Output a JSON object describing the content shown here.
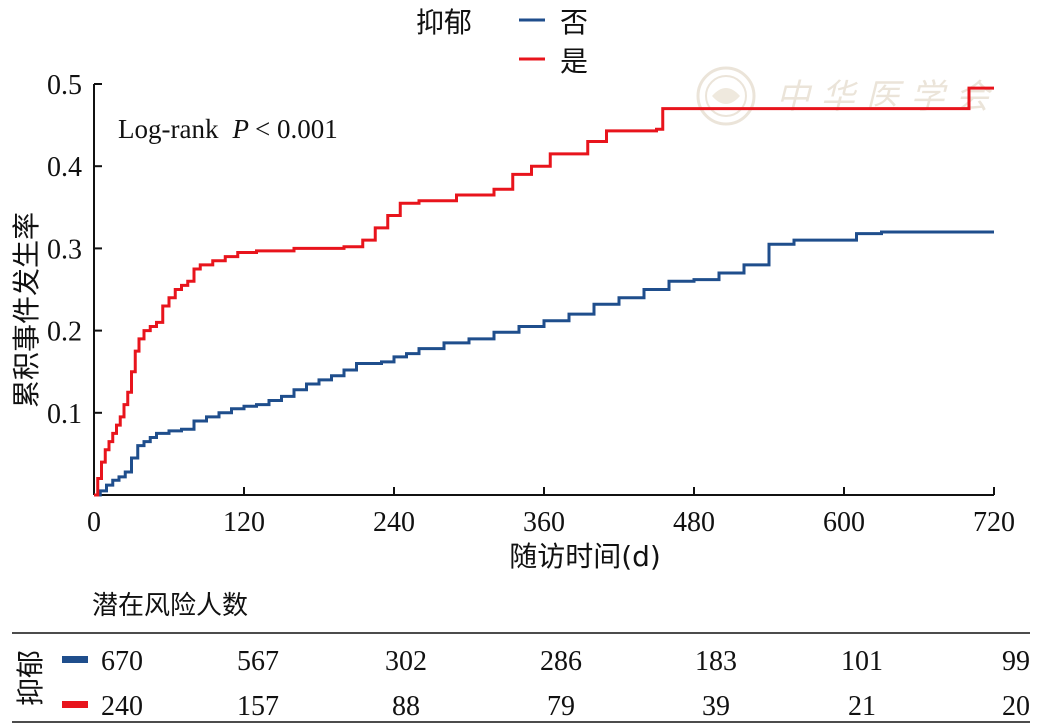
{
  "chart_data": {
    "type": "line",
    "subtype": "step",
    "annotation": "Log-rank",
    "annotation_p": "P",
    "annotation_value": "< 0.001",
    "xlabel": "随访时间(d)",
    "ylabel": "累积事件发生率",
    "xlim": [
      0,
      720
    ],
    "ylim": [
      0,
      0.5
    ],
    "xticks": [
      "0",
      "120",
      "240",
      "360",
      "480",
      "600",
      "720"
    ],
    "yticks": [
      "0.1",
      "0.2",
      "0.3",
      "0.4",
      "0.5"
    ],
    "grid": false,
    "legend": {
      "title": "抑郁",
      "position": "top-center"
    },
    "series": [
      {
        "name": "否",
        "color": "#1f4e8c",
        "points": [
          [
            0,
            0
          ],
          [
            5,
            0.005
          ],
          [
            10,
            0.012
          ],
          [
            15,
            0.018
          ],
          [
            20,
            0.022
          ],
          [
            25,
            0.028
          ],
          [
            30,
            0.045
          ],
          [
            35,
            0.06
          ],
          [
            40,
            0.065
          ],
          [
            45,
            0.07
          ],
          [
            50,
            0.075
          ],
          [
            60,
            0.078
          ],
          [
            70,
            0.08
          ],
          [
            80,
            0.09
          ],
          [
            90,
            0.095
          ],
          [
            100,
            0.1
          ],
          [
            110,
            0.105
          ],
          [
            120,
            0.108
          ],
          [
            130,
            0.11
          ],
          [
            140,
            0.115
          ],
          [
            150,
            0.12
          ],
          [
            160,
            0.128
          ],
          [
            170,
            0.135
          ],
          [
            180,
            0.14
          ],
          [
            190,
            0.145
          ],
          [
            200,
            0.152
          ],
          [
            210,
            0.16
          ],
          [
            230,
            0.162
          ],
          [
            240,
            0.168
          ],
          [
            250,
            0.172
          ],
          [
            260,
            0.178
          ],
          [
            280,
            0.185
          ],
          [
            300,
            0.19
          ],
          [
            320,
            0.198
          ],
          [
            340,
            0.205
          ],
          [
            360,
            0.212
          ],
          [
            380,
            0.22
          ],
          [
            400,
            0.232
          ],
          [
            420,
            0.24
          ],
          [
            440,
            0.25
          ],
          [
            460,
            0.26
          ],
          [
            480,
            0.262
          ],
          [
            500,
            0.27
          ],
          [
            520,
            0.28
          ],
          [
            540,
            0.305
          ],
          [
            560,
            0.31
          ],
          [
            590,
            0.31
          ],
          [
            610,
            0.318
          ],
          [
            630,
            0.32
          ],
          [
            720,
            0.32
          ]
        ]
      },
      {
        "name": "是",
        "color": "#e8141c",
        "points": [
          [
            0,
            0
          ],
          [
            3,
            0.02
          ],
          [
            6,
            0.04
          ],
          [
            9,
            0.055
          ],
          [
            12,
            0.065
          ],
          [
            15,
            0.075
          ],
          [
            18,
            0.085
          ],
          [
            21,
            0.095
          ],
          [
            24,
            0.11
          ],
          [
            27,
            0.125
          ],
          [
            30,
            0.15
          ],
          [
            33,
            0.175
          ],
          [
            36,
            0.19
          ],
          [
            40,
            0.2
          ],
          [
            45,
            0.205
          ],
          [
            50,
            0.21
          ],
          [
            55,
            0.23
          ],
          [
            60,
            0.24
          ],
          [
            65,
            0.25
          ],
          [
            70,
            0.255
          ],
          [
            75,
            0.26
          ],
          [
            80,
            0.275
          ],
          [
            85,
            0.28
          ],
          [
            95,
            0.285
          ],
          [
            105,
            0.29
          ],
          [
            115,
            0.295
          ],
          [
            130,
            0.297
          ],
          [
            160,
            0.3
          ],
          [
            200,
            0.302
          ],
          [
            215,
            0.31
          ],
          [
            225,
            0.325
          ],
          [
            235,
            0.34
          ],
          [
            245,
            0.355
          ],
          [
            260,
            0.358
          ],
          [
            290,
            0.365
          ],
          [
            320,
            0.372
          ],
          [
            335,
            0.39
          ],
          [
            350,
            0.4
          ],
          [
            365,
            0.415
          ],
          [
            395,
            0.43
          ],
          [
            410,
            0.443
          ],
          [
            450,
            0.445
          ],
          [
            455,
            0.47
          ],
          [
            500,
            0.47
          ],
          [
            690,
            0.47
          ],
          [
            700,
            0.495
          ],
          [
            720,
            0.495
          ]
        ]
      }
    ]
  },
  "risk_table": {
    "title": "潜在风险人数",
    "group_label": "抑郁",
    "rows": [
      {
        "name": "否",
        "color": "#1f4e8c",
        "values": [
          "670",
          "567",
          "302",
          "286",
          "183",
          "101",
          "99"
        ]
      },
      {
        "name": "是",
        "color": "#e8141c",
        "values": [
          "240",
          "157",
          "88",
          "79",
          "39",
          "21",
          "20"
        ]
      }
    ]
  }
}
